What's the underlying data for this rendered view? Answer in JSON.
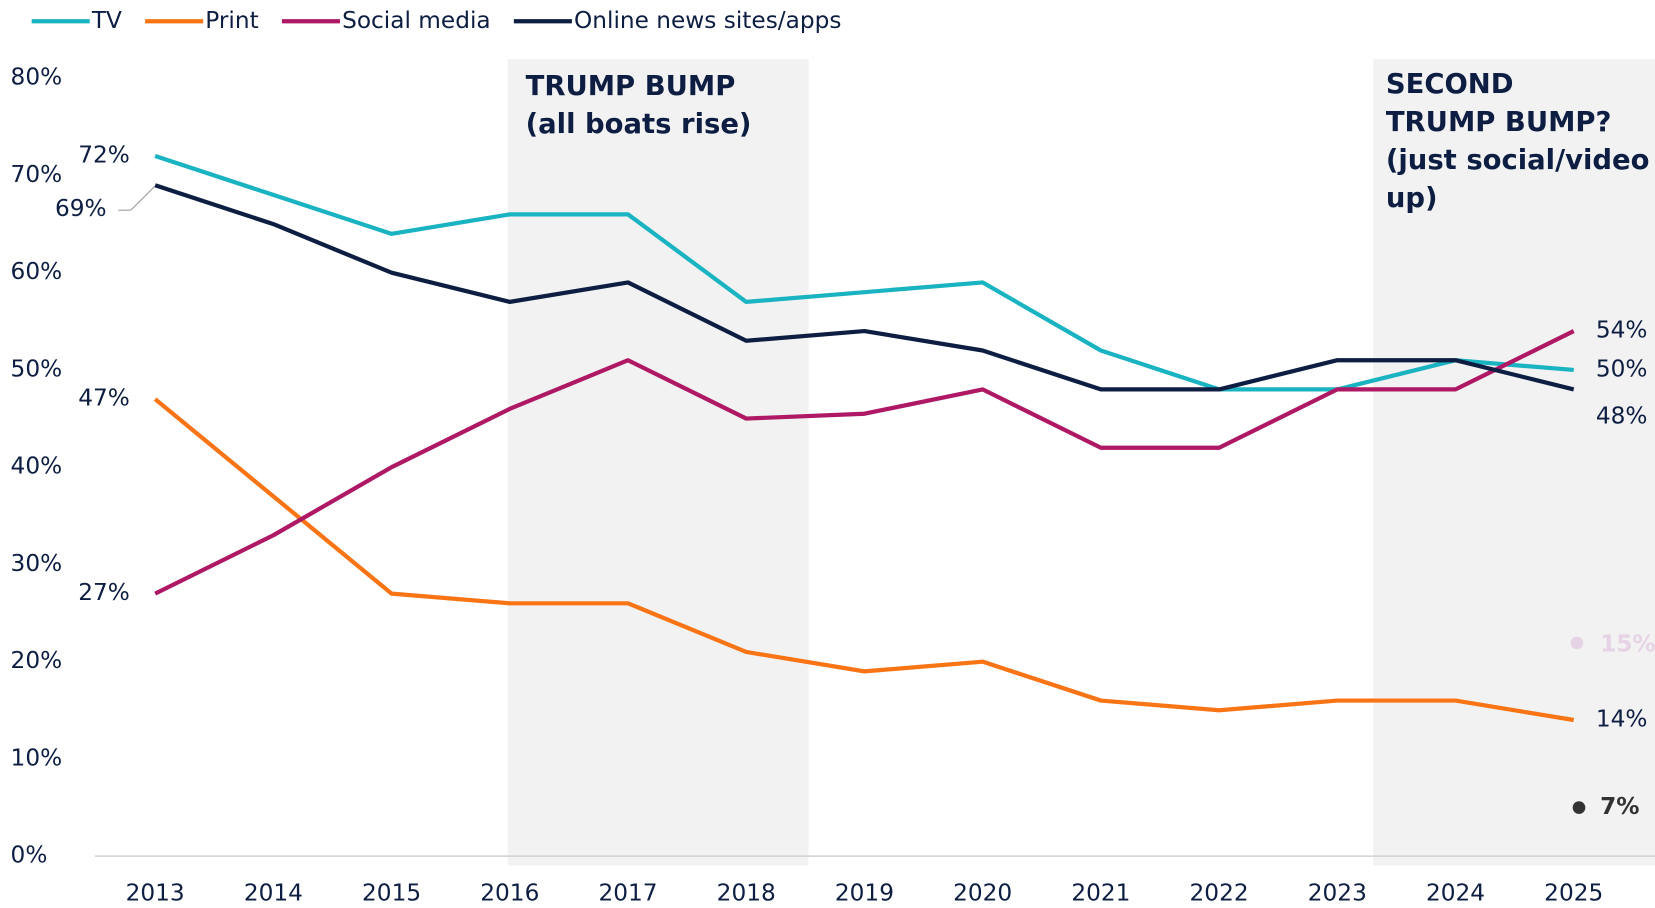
{
  "chart_data": {
    "type": "line",
    "x": [
      2013,
      2014,
      2015,
      2016,
      2017,
      2018,
      2019,
      2020,
      2021,
      2022,
      2023,
      2024,
      2025
    ],
    "series": [
      {
        "name": "TV",
        "color": "#1ab3c1",
        "values": [
          72,
          68,
          64,
          66,
          66,
          57,
          58,
          59,
          52,
          48,
          48,
          51,
          50
        ],
        "value_labels": [
          "72%",
          null,
          null,
          null,
          null,
          null,
          null,
          null,
          null,
          null,
          null,
          null,
          "50%"
        ]
      },
      {
        "name": "Print",
        "color": "#f97415",
        "values": [
          47,
          37,
          27,
          26,
          26,
          21,
          19,
          20,
          16,
          15,
          16,
          16,
          14
        ],
        "value_labels": [
          "47%",
          null,
          null,
          null,
          null,
          null,
          null,
          null,
          null,
          null,
          null,
          null,
          "14%"
        ]
      },
      {
        "name": "Social media",
        "color": "#ae1864",
        "values": [
          27,
          33,
          40,
          46,
          51,
          45,
          45.5,
          48,
          42,
          42,
          48,
          48,
          54
        ],
        "value_labels": [
          "27%",
          null,
          null,
          null,
          null,
          null,
          null,
          null,
          null,
          null,
          null,
          null,
          "54%"
        ]
      },
      {
        "name": "Online news sites/apps",
        "color": "#0d1e42",
        "values": [
          69,
          65,
          60,
          57,
          59,
          53,
          54,
          52,
          48,
          48,
          51,
          51,
          48
        ],
        "value_labels": [
          "69%",
          null,
          null,
          null,
          null,
          null,
          null,
          null,
          null,
          null,
          null,
          null,
          "48%"
        ]
      }
    ],
    "ylim": [
      0,
      80
    ],
    "yticks": [
      {
        "value": 0,
        "label": "0%"
      },
      {
        "value": 10,
        "label": "10%"
      },
      {
        "value": 20,
        "label": "20%"
      },
      {
        "value": 30,
        "label": "30%"
      },
      {
        "value": 40,
        "label": "40%"
      },
      {
        "value": 50,
        "label": "50%"
      },
      {
        "value": 60,
        "label": "60%"
      },
      {
        "value": 70,
        "label": "70%"
      },
      {
        "value": 80,
        "label": "80%"
      }
    ],
    "annotations": [
      {
        "lines": [
          "TRUMP BUMP",
          "(all boats rise)"
        ]
      },
      {
        "lines": [
          "SECOND",
          "TRUMP BUMP?",
          "(just social/video",
          "up)"
        ]
      },
      {
        "text": "15%",
        "color": "#e6d3e6"
      },
      {
        "text": "7%",
        "color": "#333333"
      }
    ],
    "legend": "top-left"
  }
}
